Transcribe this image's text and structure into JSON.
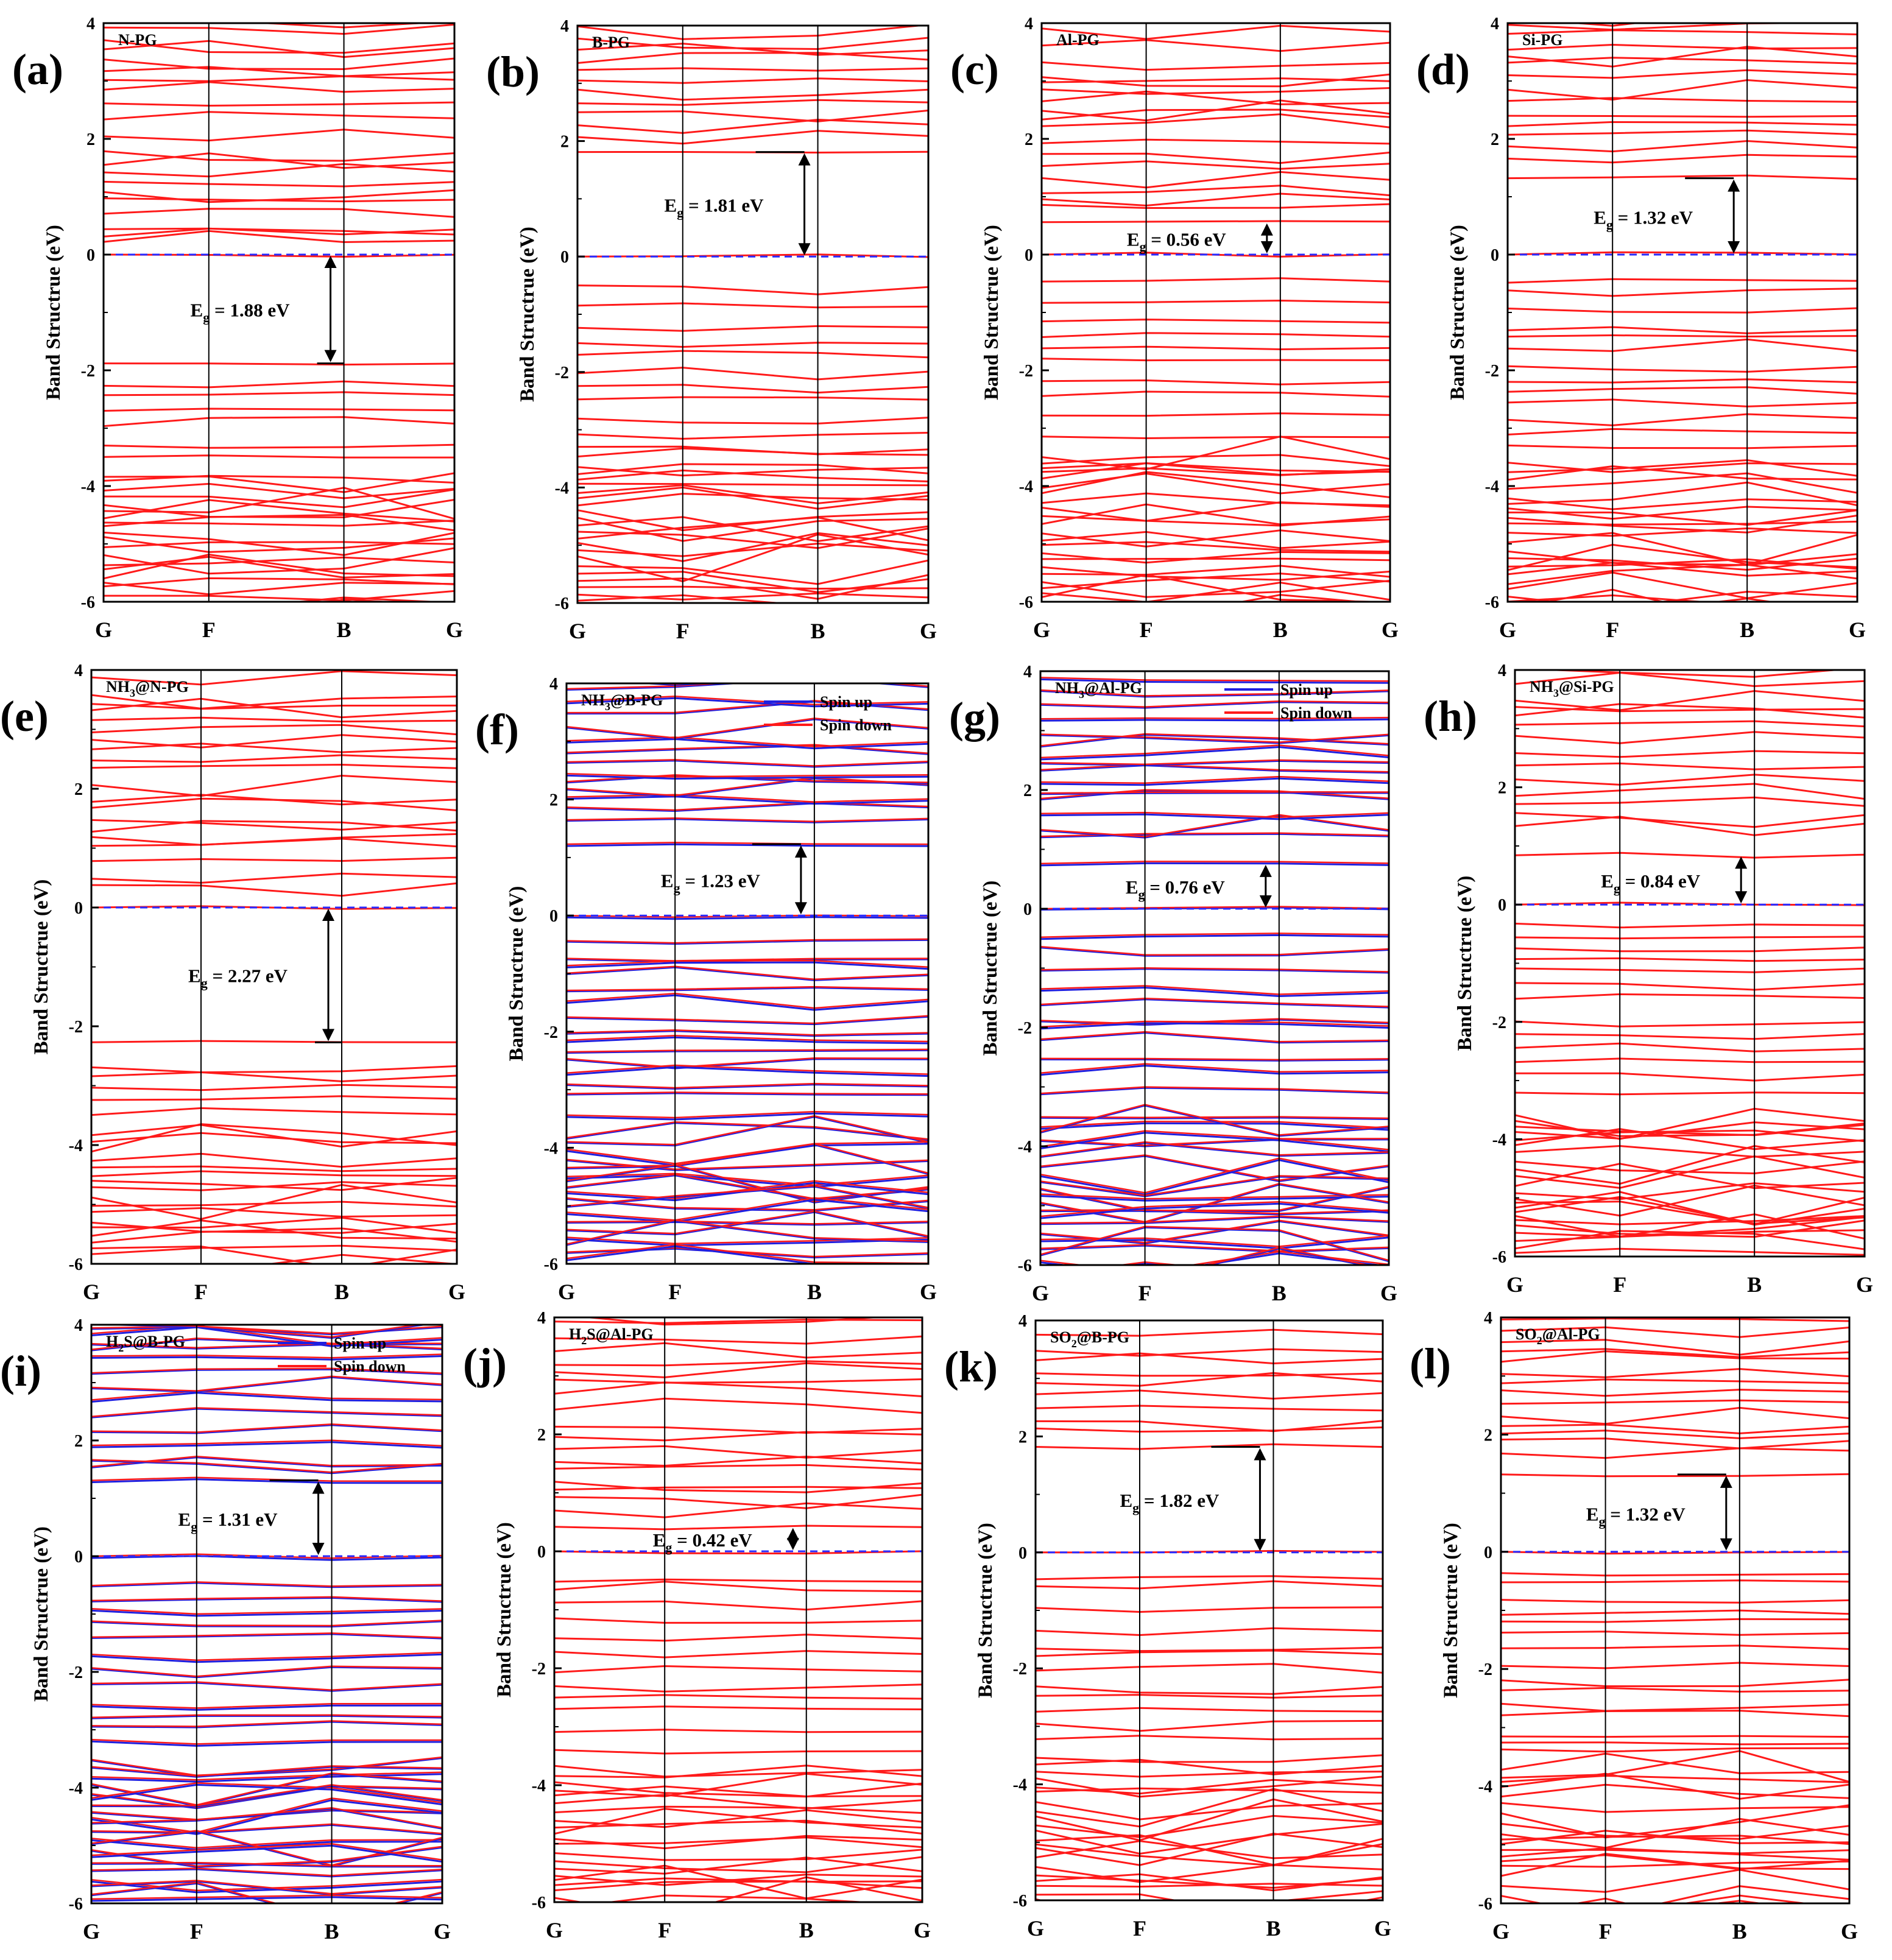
{
  "figure": {
    "ylabel": "Band Structrue (eV)",
    "eg_symbol": "E",
    "eg_subscript": "g",
    "spin_up_label": "Spin up",
    "spin_down_label": "Spin down",
    "colors": {
      "band": "#ff1a1a",
      "spin_up": "#1f1fe0",
      "fermi": "#2a2aff",
      "frame": "#000000"
    }
  },
  "chart_data": [
    {
      "letter": "(a)",
      "title": "N-PG",
      "gap": "1.88",
      "type": "line",
      "ylim": [
        -6,
        4
      ],
      "yticks": [
        "4",
        "2",
        "0",
        "-2",
        "-4",
        "-6"
      ],
      "kpoints": [
        "G",
        "F",
        "B",
        "G"
      ],
      "vbm": -1.88,
      "cbm": 0.0,
      "spin": false
    },
    {
      "letter": "(b)",
      "title": "B-PG",
      "gap": "1.81",
      "type": "line",
      "ylim": [
        -6,
        4
      ],
      "yticks": [
        "4",
        "2",
        "0",
        "-2",
        "-4",
        "-6"
      ],
      "kpoints": [
        "G",
        "F",
        "B",
        "G"
      ],
      "vbm": 0.0,
      "cbm": 1.81,
      "spin": false
    },
    {
      "letter": "(c)",
      "title": "Al-PG",
      "gap": "0.56",
      "type": "line",
      "ylim": [
        -6,
        4
      ],
      "yticks": [
        "4",
        "2",
        "0",
        "-2",
        "-4",
        "-6"
      ],
      "kpoints": [
        "G",
        "F",
        "B",
        "G"
      ],
      "vbm": 0.0,
      "cbm": 0.56,
      "spin": false
    },
    {
      "letter": "(d)",
      "title": "Si-PG",
      "gap": "1.32",
      "type": "line",
      "ylim": [
        -6,
        4
      ],
      "yticks": [
        "4",
        "2",
        "0",
        "-2",
        "-4",
        "-6"
      ],
      "kpoints": [
        "G",
        "F",
        "B",
        "G"
      ],
      "vbm": 0.0,
      "cbm": 1.32,
      "spin": false
    },
    {
      "letter": "(e)",
      "title_prefix": "NH",
      "title_sub": "3",
      "title_suffix": "@N-PG",
      "gap": "2.27",
      "type": "line",
      "ylim": [
        -6,
        4
      ],
      "yticks": [
        "4",
        "2",
        "0",
        "-2",
        "-4",
        "-6"
      ],
      "kpoints": [
        "G",
        "F",
        "B",
        "G"
      ],
      "vbm": -2.27,
      "cbm": 0.0,
      "spin": false
    },
    {
      "letter": "(f)",
      "title_prefix": "NH",
      "title_sub": "3",
      "title_suffix": "@B-PG",
      "gap": "1.23",
      "type": "line",
      "ylim": [
        -6,
        4
      ],
      "yticks": [
        "4",
        "2",
        "0",
        "-2",
        "-4",
        "-6"
      ],
      "kpoints": [
        "G",
        "F",
        "B",
        "G"
      ],
      "vbm": 0.0,
      "cbm": 1.23,
      "spin": true
    },
    {
      "letter": "(g)",
      "title_prefix": "NH",
      "title_sub": "3",
      "title_suffix": "@Al-PG",
      "gap": "0.76",
      "type": "line",
      "ylim": [
        -6,
        4
      ],
      "yticks": [
        "4",
        "2",
        "0",
        "-2",
        "-4",
        "-6"
      ],
      "kpoints": [
        "G",
        "F",
        "B",
        "G"
      ],
      "vbm": 0.0,
      "cbm": 0.76,
      "spin": true
    },
    {
      "letter": "(h)",
      "title_prefix": "NH",
      "title_sub": "3",
      "title_suffix": "@Si-PG",
      "gap": "0.84",
      "type": "line",
      "ylim": [
        -6,
        4
      ],
      "yticks": [
        "4",
        "2",
        "0",
        "-2",
        "-4",
        "-6"
      ],
      "kpoints": [
        "G",
        "F",
        "B",
        "G"
      ],
      "vbm": 0.0,
      "cbm": 0.84,
      "spin": false
    },
    {
      "letter": "(i)",
      "title_prefix": "H",
      "title_sub": "2",
      "title_suffix": "S@B-PG",
      "gap": "1.31",
      "type": "line",
      "ylim": [
        -6,
        4
      ],
      "yticks": [
        "4",
        "2",
        "0",
        "-2",
        "-4",
        "-6"
      ],
      "kpoints": [
        "G",
        "F",
        "B",
        "G"
      ],
      "vbm": 0.0,
      "cbm": 1.31,
      "spin": true
    },
    {
      "letter": "(j)",
      "title_prefix": "H",
      "title_sub": "2",
      "title_suffix": "S@Al-PG",
      "gap": "0.42",
      "type": "line",
      "ylim": [
        -6,
        4
      ],
      "yticks": [
        "4",
        "2",
        "0",
        "-2",
        "-4",
        "-6"
      ],
      "kpoints": [
        "G",
        "F",
        "B",
        "G"
      ],
      "vbm": 0.0,
      "cbm": 0.42,
      "spin": false
    },
    {
      "letter": "(k)",
      "title_prefix": "SO",
      "title_sub": "2",
      "title_suffix": "@B-PG",
      "gap": "1.82",
      "type": "line",
      "ylim": [
        -6,
        4
      ],
      "yticks": [
        "4",
        "2",
        "0",
        "-2",
        "-4",
        "-6"
      ],
      "kpoints": [
        "G",
        "F",
        "B",
        "G"
      ],
      "vbm": 0.0,
      "cbm": 1.82,
      "spin": false
    },
    {
      "letter": "(l)",
      "title_prefix": "SO",
      "title_sub": "2",
      "title_suffix": "@Al-PG",
      "gap": "1.32",
      "type": "line",
      "ylim": [
        -6,
        4
      ],
      "yticks": [
        "4",
        "2",
        "0",
        "-2",
        "-4",
        "-6"
      ],
      "kpoints": [
        "G",
        "F",
        "B",
        "G"
      ],
      "vbm": 0.0,
      "cbm": 1.32,
      "spin": false
    }
  ]
}
